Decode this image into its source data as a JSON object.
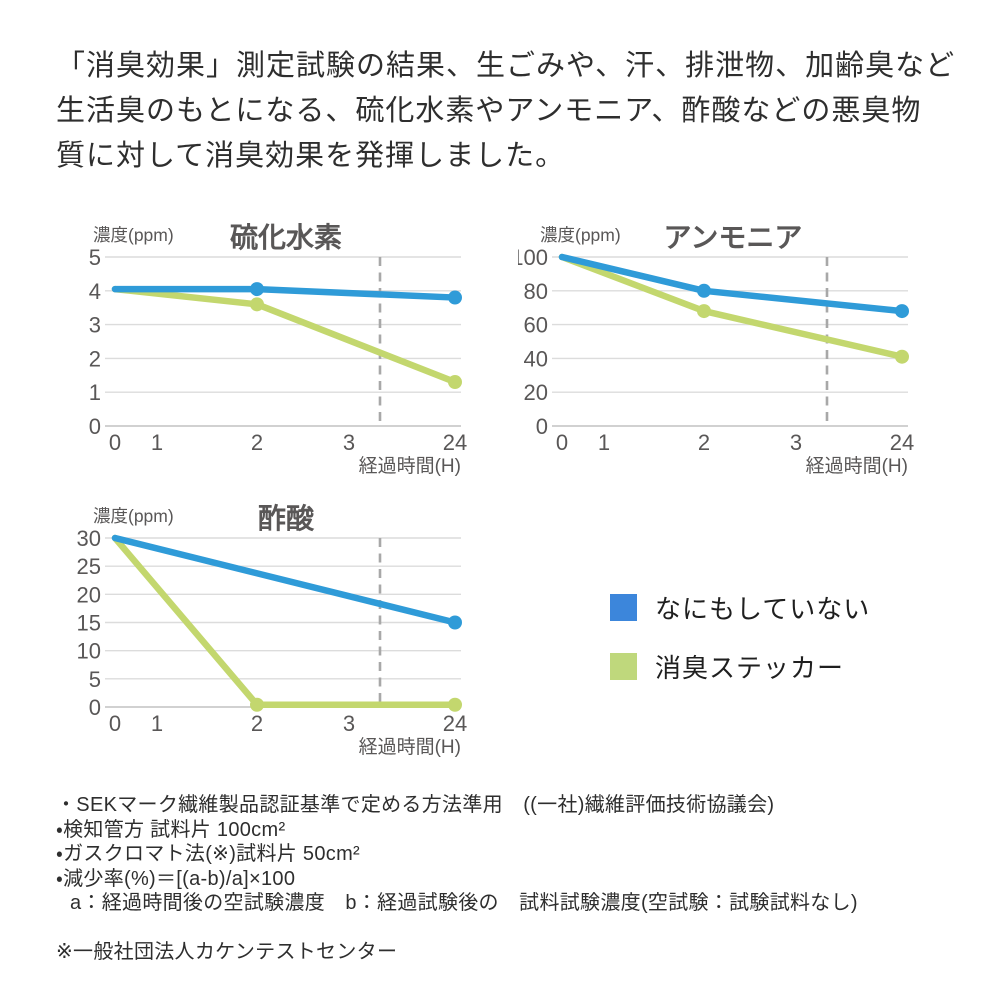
{
  "intro": {
    "lines": [
      "「消臭効果」測定試験の結果、生ごみや、汗、排泄物、加齢臭など",
      "生活臭のもとになる、硫化水素やアンモニア、酢酸などの悪臭物",
      "質に対して消臭効果を発揮しました。"
    ]
  },
  "colors": {
    "line_blue": "#2f9bd8",
    "line_green": "#c3d76e",
    "legend_blue": "#3c86db",
    "legend_green": "#bfd87c",
    "gridline": "#dcdcdc",
    "baseline": "#c2c2c2",
    "dashed_guide": "#a8a8a8",
    "axis_text": "#595757",
    "title_text": "#333333"
  },
  "legend": {
    "items": [
      {
        "label": "なにもしていない",
        "color": "#3c86db"
      },
      {
        "label": "消臭ステッカー",
        "color": "#bfd87c"
      }
    ]
  },
  "chart_data": [
    {
      "type": "line",
      "title": "硫化水素",
      "ylabel": "濃度(ppm)",
      "xlabel": "経過時間(H)",
      "x_ticks": [
        0,
        1,
        2,
        3,
        24
      ],
      "ylim": [
        0,
        5
      ],
      "ystep": 1,
      "grid": true,
      "dashed_guide_between": [
        3,
        24
      ],
      "series": [
        {
          "name": "なにもしていない",
          "color": "#2f9bd8",
          "x": [
            0,
            2,
            24
          ],
          "values": [
            4.05,
            4.05,
            3.8
          ],
          "marker_x": [
            2,
            24
          ]
        },
        {
          "name": "消臭ステッカー",
          "color": "#c3d76e",
          "x": [
            0,
            2,
            24
          ],
          "values": [
            4.05,
            3.6,
            1.3
          ],
          "marker_x": [
            2,
            24
          ]
        }
      ]
    },
    {
      "type": "line",
      "title": "アンモニア",
      "ylabel": "濃度(ppm)",
      "xlabel": "経過時間(H)",
      "x_ticks": [
        0,
        1,
        2,
        3,
        24
      ],
      "ylim": [
        0,
        100
      ],
      "ystep": 20,
      "grid": true,
      "dashed_guide_between": [
        3,
        24
      ],
      "series": [
        {
          "name": "なにもしていない",
          "color": "#2f9bd8",
          "x": [
            0,
            2,
            24
          ],
          "values": [
            100,
            80,
            68
          ],
          "marker_x": [
            2,
            24
          ]
        },
        {
          "name": "消臭ステッカー",
          "color": "#c3d76e",
          "x": [
            0,
            2,
            24
          ],
          "values": [
            100,
            68,
            41
          ],
          "marker_x": [
            2,
            24
          ]
        }
      ]
    },
    {
      "type": "line",
      "title": "酢酸",
      "ylabel": "濃度(ppm)",
      "xlabel": "経過時間(H)",
      "x_ticks": [
        0,
        1,
        2,
        3,
        24
      ],
      "ylim": [
        0,
        30
      ],
      "ystep": 5,
      "grid": true,
      "dashed_guide_between": [
        3,
        24
      ],
      "series": [
        {
          "name": "なにもしていない",
          "color": "#2f9bd8",
          "x": [
            0,
            24
          ],
          "values": [
            30,
            15
          ],
          "marker_x": [
            24
          ]
        },
        {
          "name": "消臭ステッカー",
          "color": "#c3d76e",
          "x": [
            0,
            2,
            24
          ],
          "values": [
            30,
            0.4,
            0.4
          ],
          "marker_x": [
            2,
            24
          ]
        }
      ]
    }
  ],
  "footnotes": {
    "items": [
      "・SEKマーク繊維製品認証基準で定める方法準用　((一社)繊維評価技術協議会)",
      "・検知管方 試料片 100cm²",
      "・ガスクロマト法(※)試料片 50cm²",
      "・減少率(%)＝[(a-b)/a]×100",
      "a：経過時間後の空試験濃度　b：経過試験後の　試料試験濃度(空試験：試験試料なし)"
    ],
    "note": "※一般社団法人カケンテストセンター"
  }
}
